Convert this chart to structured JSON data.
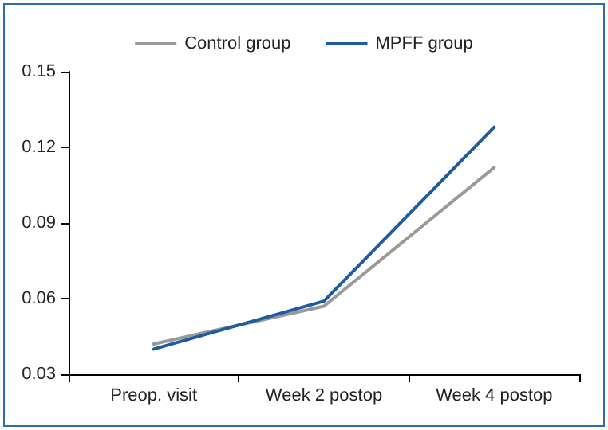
{
  "chart_data": {
    "type": "line",
    "categories": [
      "Preop. visit",
      "Week 2 postop",
      "Week 4 postop"
    ],
    "series": [
      {
        "name": "Control group",
        "color": "#9a9a9a",
        "values": [
          0.042,
          0.057,
          0.112
        ]
      },
      {
        "name": "MPFF group",
        "color": "#1f5c9e",
        "values": [
          0.04,
          0.059,
          0.128
        ]
      }
    ],
    "ylim": [
      0.03,
      0.15
    ],
    "yticks": [
      0.03,
      0.06,
      0.09,
      0.12,
      0.15
    ],
    "grid": false,
    "legend": "top",
    "marker": "none",
    "line_style": "solid"
  }
}
